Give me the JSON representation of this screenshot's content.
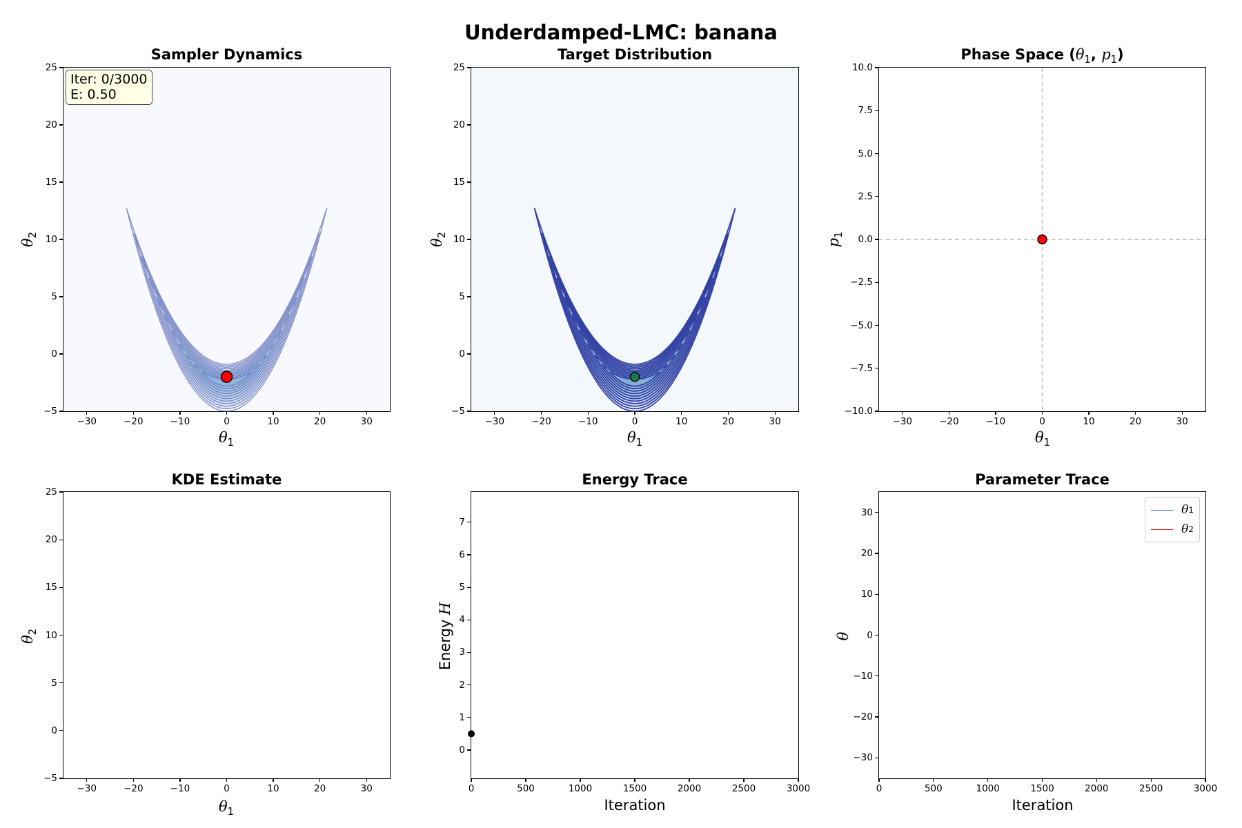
{
  "figure": {
    "title": "Underdamped-LMC: banana"
  },
  "panels": {
    "sampler": {
      "title": "Sampler Dynamics",
      "xlabel": "θ",
      "xlabel_sub": "1",
      "ylabel": "θ",
      "ylabel_sub": "2",
      "info": {
        "iter": "Iter: 0/3000",
        "energy": "E: 0.50"
      }
    },
    "target": {
      "title": "Target Distribution",
      "xlabel": "θ",
      "xlabel_sub": "1",
      "ylabel": "θ",
      "ylabel_sub": "2"
    },
    "phase": {
      "title_prefix": "Phase Space (",
      "title_theta": "θ",
      "title_theta_sub": "1",
      "title_sep": ", ",
      "title_p": "p",
      "title_p_sub": "1",
      "title_suffix": ")",
      "xlabel": "θ",
      "xlabel_sub": "1",
      "ylabel": "p",
      "ylabel_sub": "1"
    },
    "kde": {
      "title": "KDE Estimate",
      "xlabel": "θ",
      "xlabel_sub": "1",
      "ylabel": "θ",
      "ylabel_sub": "2"
    },
    "energy": {
      "title": "Energy Trace",
      "xlabel": "Iteration",
      "ylabel_text": "Energy ",
      "ylabel_sym": "H"
    },
    "trace": {
      "title": "Parameter Trace",
      "xlabel": "Iteration",
      "ylabel": "θ",
      "legend": [
        {
          "label": "θ",
          "sub": "1",
          "color": "#4472c4"
        },
        {
          "label": "θ",
          "sub": "2",
          "color": "#e41a1c"
        }
      ]
    }
  },
  "chart_data": [
    {
      "id": "sampler",
      "type": "contour",
      "title": "Sampler Dynamics",
      "xlabel": "θ1",
      "ylabel": "θ2",
      "xlim": [
        -35,
        35
      ],
      "ylim": [
        -5,
        25
      ],
      "xticks": [
        -30,
        -20,
        -10,
        0,
        10,
        20,
        30
      ],
      "yticks": [
        -5,
        0,
        5,
        10,
        15,
        20,
        25
      ],
      "banana": {
        "curvature": 0.03,
        "center_y": -2.5,
        "arm_tip_x": 21.5,
        "arm_tip_y": 11
      },
      "contour_color": "#5a6ab5",
      "fill_color": "#6a9bd1",
      "background": "#f7f9fe",
      "current_point": {
        "x": 0,
        "y": -2,
        "color": "#ff0000"
      },
      "annotation": [
        "Iter: 0/3000",
        "E: 0.50"
      ]
    },
    {
      "id": "target",
      "type": "contour",
      "title": "Target Distribution",
      "xlabel": "θ1",
      "ylabel": "θ2",
      "xlim": [
        -35,
        35
      ],
      "ylim": [
        -5,
        25
      ],
      "xticks": [
        -30,
        -20,
        -10,
        0,
        10,
        20,
        30
      ],
      "yticks": [
        -5,
        0,
        5,
        10,
        15,
        20,
        25
      ],
      "banana": {
        "curvature": 0.03,
        "center_y": -2.5,
        "arm_tip_x": 21.5,
        "arm_tip_y": 11
      },
      "contour_color": "#2b3aa0",
      "fill_color": "#5b93cc",
      "background": "#f4f8fd",
      "current_point": {
        "x": 0,
        "y": -2,
        "color": "#1b7a4e"
      }
    },
    {
      "id": "phase",
      "type": "scatter",
      "title": "Phase Space (θ1, p1)",
      "xlabel": "θ1",
      "ylabel": "p1",
      "xlim": [
        -35,
        35
      ],
      "ylim": [
        -10,
        10
      ],
      "xticks": [
        -30,
        -20,
        -10,
        0,
        10,
        20,
        30
      ],
      "yticks": [
        -10.0,
        -7.5,
        -5.0,
        -2.5,
        0.0,
        2.5,
        5.0,
        7.5,
        10.0
      ],
      "ytick_labels": [
        "−10.0",
        "−7.5",
        "−5.0",
        "−2.5",
        "0.0",
        "2.5",
        "5.0",
        "7.5",
        "10.0"
      ],
      "reference_lines": {
        "x": 0,
        "y": 0,
        "style": "dashed",
        "color": "#bbbbbb"
      },
      "points": [
        {
          "x": 0,
          "y": 0,
          "color": "#ff0000"
        }
      ]
    },
    {
      "id": "kde",
      "type": "heatmap",
      "title": "KDE Estimate",
      "xlabel": "θ1",
      "ylabel": "θ2",
      "xlim": [
        -35,
        35
      ],
      "ylim": [
        -5,
        25
      ],
      "xticks": [
        -30,
        -20,
        -10,
        0,
        10,
        20,
        30
      ],
      "yticks": [
        -5,
        0,
        5,
        10,
        15,
        20,
        25
      ],
      "values": []
    },
    {
      "id": "energy",
      "type": "line",
      "title": "Energy Trace",
      "xlabel": "Iteration",
      "ylabel": "Energy H",
      "xlim": [
        0,
        3000
      ],
      "ylim": [
        -0.87,
        7.93
      ],
      "xticks": [
        0,
        500,
        1000,
        1500,
        2000,
        2500,
        3000
      ],
      "yticks": [
        0,
        1,
        2,
        3,
        4,
        5,
        6,
        7
      ],
      "x": [
        0
      ],
      "values": [
        0.5
      ],
      "marker": {
        "x": 0,
        "y": 0.5,
        "color": "#000000"
      }
    },
    {
      "id": "trace",
      "type": "line",
      "title": "Parameter Trace",
      "xlabel": "Iteration",
      "ylabel": "θ",
      "xlim": [
        0,
        3000
      ],
      "ylim": [
        -35,
        35
      ],
      "xticks": [
        0,
        500,
        1000,
        1500,
        2000,
        2500,
        3000
      ],
      "yticks": [
        -30,
        -20,
        -10,
        0,
        10,
        20,
        30
      ],
      "series": [
        {
          "name": "θ1",
          "color": "#4472c4",
          "values": []
        },
        {
          "name": "θ2",
          "color": "#e41a1c",
          "values": []
        }
      ],
      "legend_position": "upper right"
    }
  ]
}
